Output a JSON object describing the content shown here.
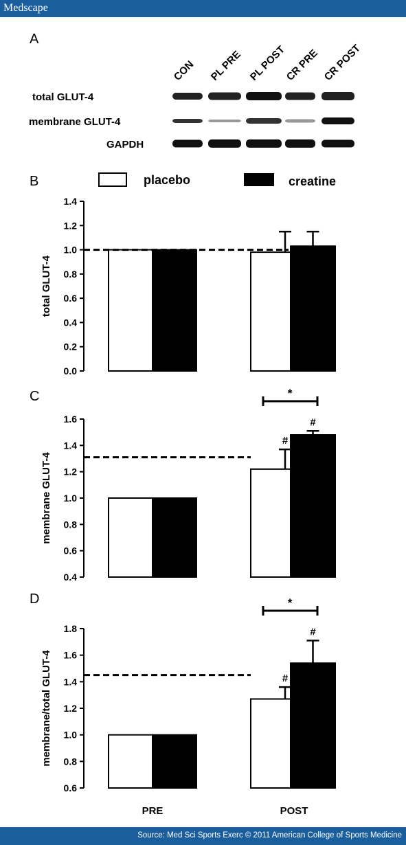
{
  "brand": "Medscape",
  "source": "Source: Med Sci Sports Exerc © 2011 American College of Sports Medicine",
  "blot": {
    "panel_letter": "A",
    "lanes": [
      "CON",
      "PL PRE",
      "PL POST",
      "CR PRE",
      "CR POST"
    ],
    "rows": [
      "total GLUT-4",
      "membrane GLUT-4",
      "GAPDH"
    ]
  },
  "legend": [
    "placebo",
    "creatine"
  ],
  "chart_data": [
    {
      "type": "bar",
      "panel": "B",
      "categories": [
        "PRE",
        "POST"
      ],
      "series": [
        {
          "name": "placebo",
          "values": [
            1.0,
            0.98
          ],
          "errors": [
            0,
            0.17
          ],
          "marks": [
            "",
            ""
          ]
        },
        {
          "name": "creatine",
          "values": [
            1.0,
            1.03
          ],
          "errors": [
            0,
            0.12
          ],
          "marks": [
            "",
            ""
          ]
        }
      ],
      "ylabel": "total GLUT-4",
      "ylim": [
        0,
        1.4
      ],
      "yticks": [
        "0.0",
        "0.2",
        "0.4",
        "0.6",
        "0.8",
        "1.0",
        "1.2",
        "1.4"
      ],
      "reference_line": 1.0,
      "significance": ""
    },
    {
      "type": "bar",
      "panel": "C",
      "categories": [
        "PRE",
        "POST"
      ],
      "series": [
        {
          "name": "placebo",
          "values": [
            1.0,
            1.22
          ],
          "errors": [
            0,
            0.15
          ],
          "marks": [
            "",
            "#"
          ]
        },
        {
          "name": "creatine",
          "values": [
            1.0,
            1.48
          ],
          "errors": [
            0,
            0.03
          ],
          "marks": [
            "",
            "#"
          ]
        }
      ],
      "ylabel": "membrane GLUT-4",
      "ylim": [
        0.4,
        1.6
      ],
      "yticks": [
        "0.4",
        "0.6",
        "0.8",
        "1.0",
        "1.2",
        "1.4",
        "1.6"
      ],
      "reference_line": 1.31,
      "significance": "*"
    },
    {
      "type": "bar",
      "panel": "D",
      "categories": [
        "PRE",
        "POST"
      ],
      "series": [
        {
          "name": "placebo",
          "values": [
            1.0,
            1.27
          ],
          "errors": [
            0,
            0.09
          ],
          "marks": [
            "",
            "#"
          ]
        },
        {
          "name": "creatine",
          "values": [
            1.0,
            1.54
          ],
          "errors": [
            0,
            0.17
          ],
          "marks": [
            "",
            "#"
          ]
        }
      ],
      "ylabel": "membrane/total GLUT-4",
      "ylim": [
        0.6,
        1.8
      ],
      "yticks": [
        "0.6",
        "0.8",
        "1.0",
        "1.2",
        "1.4",
        "1.6",
        "1.8"
      ],
      "reference_line": 1.45,
      "significance": "*"
    }
  ]
}
